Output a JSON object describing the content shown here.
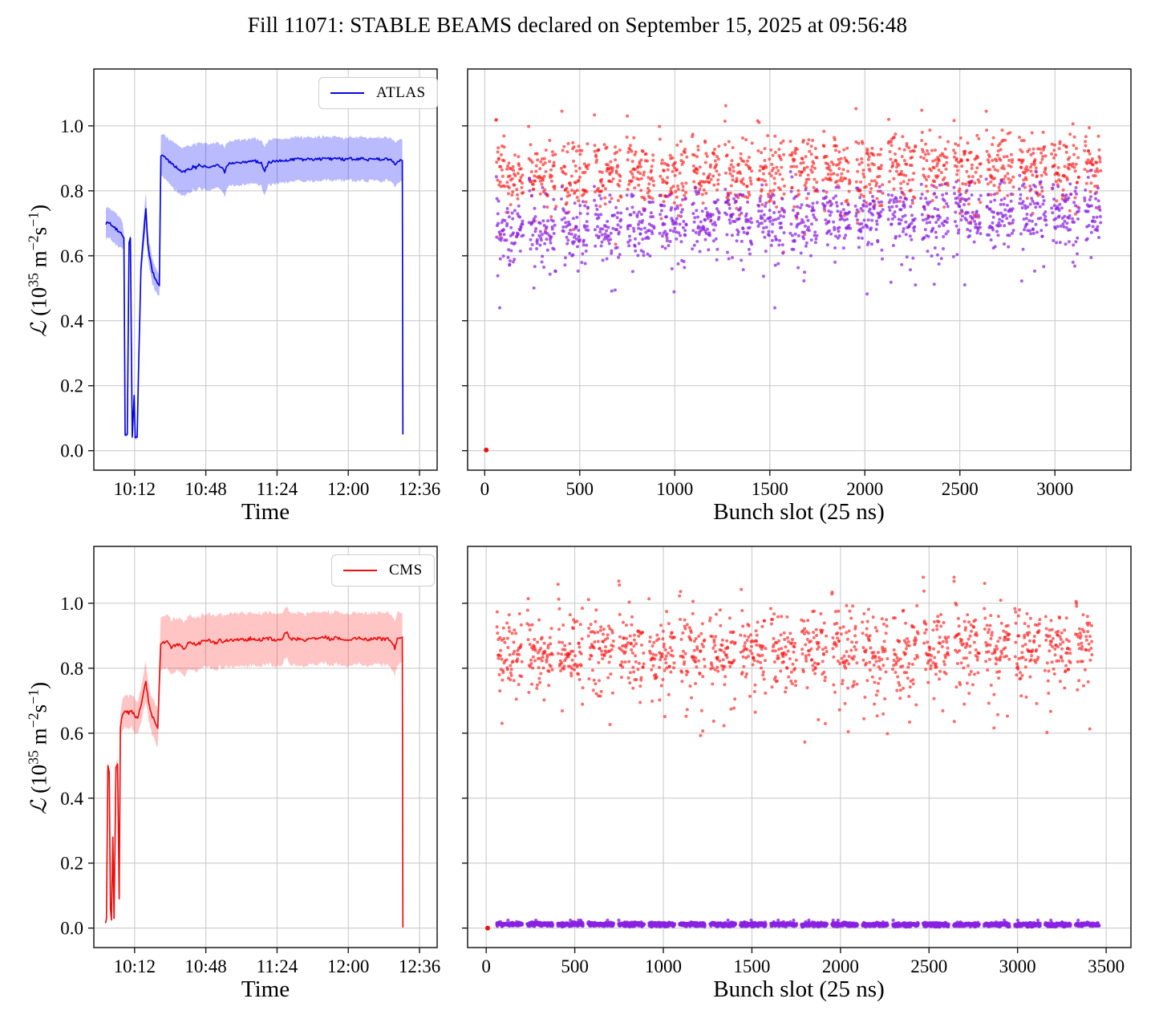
{
  "figure": {
    "title": "Fill 11071: STABLE BEAMS declared on September 15, 2025 at 09:56:48",
    "background": "#ffffff",
    "grid_color": "#c6c6c6",
    "spine_color": "#1a1a1a"
  },
  "ylabel": {
    "cal": "ℒ",
    "pre": "(10",
    "e1": "35",
    "mid": "m",
    "e2": "−2",
    "s": "s",
    "e3": "−1",
    "post": ")"
  },
  "labels": {
    "time": "Time",
    "bunch": "Bunch slot (25 ns)"
  },
  "legends": {
    "atlas": "ATLAS",
    "cms": "CMS"
  },
  "chart_data": [
    {
      "id": "atlas_time",
      "type": "line_band",
      "legend": "ATLAS",
      "line_color": "#0707dd",
      "band_color": "#0000ff",
      "band_opacity": 0.27,
      "xlabel": "Time",
      "ylabel": "L (10^35 m^-2 s^-1)",
      "x_domain_minutes_after_0900": [
        51.4,
        224.9
      ],
      "x_tick_values": [
        72,
        108,
        144,
        180,
        216
      ],
      "x_tick_labels": [
        "10:12",
        "10:48",
        "11:24",
        "12:00",
        "12:36"
      ],
      "y_domain": [
        -0.06,
        1.175
      ],
      "y_tick_values": [
        0.0,
        0.2,
        0.4,
        0.6,
        0.8,
        1.0
      ],
      "y_tick_labels": [
        "0.0",
        "0.2",
        "0.4",
        "0.6",
        "0.8",
        "1.0"
      ],
      "noise_amp": 0.004,
      "seed": 11071,
      "keypoints_t_mean_halfband": [
        [
          57.5,
          0.7,
          0.045
        ],
        [
          59,
          0.703,
          0.044
        ],
        [
          60.5,
          0.69,
          0.045
        ],
        [
          62,
          0.685,
          0.045
        ],
        [
          63.5,
          0.678,
          0.044
        ],
        [
          65,
          0.672,
          0.044
        ],
        [
          66,
          0.66,
          0.04
        ],
        [
          66.6,
          0.655,
          0.012
        ],
        [
          67.2,
          0.048,
          0.006
        ],
        [
          68.3,
          0.05,
          0.006
        ],
        [
          69.2,
          0.64,
          0.012
        ],
        [
          69.9,
          0.655,
          0.012
        ],
        [
          70.8,
          0.042,
          0.006
        ],
        [
          71.8,
          0.17,
          0.008
        ],
        [
          72.3,
          0.04,
          0.006
        ],
        [
          73.3,
          0.042,
          0.006
        ],
        [
          74.2,
          0.3,
          0.015
        ],
        [
          75.2,
          0.56,
          0.035
        ],
        [
          76.2,
          0.64,
          0.042
        ],
        [
          77.7,
          0.745,
          0.05
        ],
        [
          78.6,
          0.64,
          0.042
        ],
        [
          79.5,
          0.6,
          0.04
        ],
        [
          81,
          0.553,
          0.036
        ],
        [
          82.5,
          0.525,
          0.034
        ],
        [
          84.5,
          0.508,
          0.032
        ],
        [
          85.3,
          0.91,
          0.062
        ],
        [
          86.5,
          0.905,
          0.063
        ],
        [
          88,
          0.898,
          0.064
        ],
        [
          90,
          0.888,
          0.066
        ],
        [
          92,
          0.878,
          0.068
        ],
        [
          94,
          0.868,
          0.07
        ],
        [
          95.5,
          0.86,
          0.071
        ],
        [
          97,
          0.858,
          0.071
        ],
        [
          98.5,
          0.868,
          0.069
        ],
        [
          100,
          0.862,
          0.07
        ],
        [
          101.5,
          0.876,
          0.068
        ],
        [
          103,
          0.87,
          0.069
        ],
        [
          104.5,
          0.88,
          0.067
        ],
        [
          106,
          0.874,
          0.068
        ],
        [
          108,
          0.877,
          0.068
        ],
        [
          110,
          0.872,
          0.069
        ],
        [
          112,
          0.876,
          0.068
        ],
        [
          114,
          0.884,
          0.067
        ],
        [
          116,
          0.872,
          0.069
        ],
        [
          117.5,
          0.858,
          0.071
        ],
        [
          119,
          0.88,
          0.067
        ],
        [
          121,
          0.886,
          0.066
        ],
        [
          124,
          0.884,
          0.067
        ],
        [
          127,
          0.888,
          0.066
        ],
        [
          130,
          0.89,
          0.066
        ],
        [
          133,
          0.891,
          0.066
        ],
        [
          136,
          0.886,
          0.067
        ],
        [
          137.8,
          0.862,
          0.07
        ],
        [
          139.5,
          0.886,
          0.066
        ],
        [
          142,
          0.89,
          0.066
        ],
        [
          145,
          0.892,
          0.065
        ],
        [
          148,
          0.893,
          0.065
        ],
        [
          151,
          0.896,
          0.064
        ],
        [
          154,
          0.898,
          0.064
        ],
        [
          157,
          0.896,
          0.064
        ],
        [
          160,
          0.899,
          0.063
        ],
        [
          163,
          0.896,
          0.064
        ],
        [
          166,
          0.898,
          0.064
        ],
        [
          169,
          0.9,
          0.063
        ],
        [
          172,
          0.897,
          0.064
        ],
        [
          175,
          0.899,
          0.063
        ],
        [
          178,
          0.897,
          0.064
        ],
        [
          181,
          0.899,
          0.063
        ],
        [
          184,
          0.897,
          0.064
        ],
        [
          187,
          0.899,
          0.063
        ],
        [
          190,
          0.896,
          0.064
        ],
        [
          193,
          0.899,
          0.063
        ],
        [
          196,
          0.897,
          0.064
        ],
        [
          199,
          0.899,
          0.063
        ],
        [
          202,
          0.896,
          0.064
        ],
        [
          203.8,
          0.88,
          0.067
        ],
        [
          205,
          0.89,
          0.065
        ],
        [
          206.3,
          0.896,
          0.064
        ],
        [
          207.3,
          0.893,
          0.065
        ],
        [
          207.6,
          0.05,
          0.008
        ]
      ]
    },
    {
      "id": "bunch_top",
      "type": "scatter",
      "xlabel": "Bunch slot (25 ns)",
      "x_domain": [
        -90,
        3400
      ],
      "x_tick_values": [
        0,
        500,
        1000,
        1500,
        2000,
        2500,
        3000
      ],
      "x_tick_labels": [
        "0",
        "500",
        "1000",
        "1500",
        "2000",
        "2500",
        "3000"
      ],
      "y_domain": [
        -0.06,
        1.175
      ],
      "y_tick_values": [
        0.0,
        0.2,
        0.4,
        0.6,
        0.8,
        1.0
      ],
      "y_tick_labels": [],
      "series": [
        {
          "name": "per-bunch luminosity high",
          "color": "#ff0e0e",
          "opacity": 0.6,
          "r": 2.0,
          "seed": 314,
          "x0": 60,
          "x1": 3240,
          "block": 172,
          "fill": 144,
          "sub": 54,
          "subfill": 48,
          "step": 2,
          "base0": 0.845,
          "base1": 0.878,
          "sigma": 0.05,
          "streak_len": 9,
          "streak_amp": 0.17,
          "tail_frac": 0.07,
          "tail_amp": 0.15,
          "clip": [
            0.6,
            1.115
          ]
        },
        {
          "name": "per-bunch luminosity low",
          "color": "#8a22e2",
          "opacity": 0.72,
          "r": 2.0,
          "seed": 2718,
          "x0": 60,
          "x1": 3240,
          "block": 172,
          "fill": 144,
          "sub": 54,
          "subfill": 48,
          "step": 2,
          "base0": 0.675,
          "base1": 0.745,
          "sigma": 0.046,
          "streak_len": 9,
          "streak_amp": 0.11,
          "tail_frac": 0.13,
          "tail_amp": 0.18,
          "clip": [
            0.44,
            0.93
          ]
        }
      ],
      "markers": [
        {
          "x": 8,
          "y": 0.002,
          "color": "#ee0f0f",
          "r": 3
        }
      ]
    },
    {
      "id": "cms_time",
      "type": "line_band",
      "legend": "CMS",
      "line_color": "#ee0f0f",
      "band_color": "#ff2a2a",
      "band_opacity": 0.27,
      "xlabel": "Time",
      "ylabel": "L (10^35 m^-2 s^-1)",
      "x_domain_minutes_after_0900": [
        51.4,
        224.9
      ],
      "x_tick_values": [
        72,
        108,
        144,
        180,
        216
      ],
      "x_tick_labels": [
        "10:12",
        "10:48",
        "11:24",
        "12:00",
        "12:36"
      ],
      "y_domain": [
        -0.06,
        1.175
      ],
      "y_tick_values": [
        0.0,
        0.2,
        0.4,
        0.6,
        0.8,
        1.0
      ],
      "y_tick_labels": [
        "0.0",
        "0.2",
        "0.4",
        "0.6",
        "0.8",
        "1.0"
      ],
      "noise_amp": 0.005,
      "seed": 956,
      "keypoints_t_mean_halfband": [
        [
          57.3,
          0.015,
          0.004
        ],
        [
          57.8,
          0.03,
          0.006
        ],
        [
          58.5,
          0.5,
          0.015
        ],
        [
          59.2,
          0.48,
          0.015
        ],
        [
          59.8,
          0.06,
          0.006
        ],
        [
          60.3,
          0.025,
          0.005
        ],
        [
          61.0,
          0.28,
          0.01
        ],
        [
          61.6,
          0.03,
          0.005
        ],
        [
          62.6,
          0.495,
          0.015
        ],
        [
          63.4,
          0.505,
          0.015
        ],
        [
          64.2,
          0.09,
          0.008
        ],
        [
          64.8,
          0.62,
          0.04
        ],
        [
          66,
          0.66,
          0.044
        ],
        [
          67.5,
          0.668,
          0.045
        ],
        [
          69,
          0.662,
          0.045
        ],
        [
          70.5,
          0.668,
          0.045
        ],
        [
          72,
          0.655,
          0.046
        ],
        [
          73.5,
          0.648,
          0.046
        ],
        [
          75,
          0.68,
          0.048
        ],
        [
          76.5,
          0.73,
          0.052
        ],
        [
          77.7,
          0.758,
          0.055
        ],
        [
          79,
          0.7,
          0.052
        ],
        [
          80.5,
          0.66,
          0.052
        ],
        [
          82,
          0.638,
          0.054
        ],
        [
          83.7,
          0.618,
          0.056
        ],
        [
          85.2,
          0.872,
          0.078
        ],
        [
          86.5,
          0.878,
          0.078
        ],
        [
          88,
          0.885,
          0.077
        ],
        [
          89.5,
          0.872,
          0.079
        ],
        [
          91,
          0.862,
          0.08
        ],
        [
          93,
          0.875,
          0.078
        ],
        [
          95,
          0.872,
          0.079
        ],
        [
          97,
          0.86,
          0.08
        ],
        [
          99,
          0.875,
          0.078
        ],
        [
          101,
          0.88,
          0.078
        ],
        [
          103,
          0.872,
          0.079
        ],
        [
          105,
          0.878,
          0.078
        ],
        [
          107,
          0.885,
          0.077
        ],
        [
          109,
          0.888,
          0.077
        ],
        [
          111,
          0.882,
          0.078
        ],
        [
          113,
          0.878,
          0.078
        ],
        [
          115,
          0.885,
          0.077
        ],
        [
          117,
          0.882,
          0.078
        ],
        [
          119,
          0.888,
          0.077
        ],
        [
          122,
          0.884,
          0.078
        ],
        [
          125,
          0.888,
          0.077
        ],
        [
          128,
          0.886,
          0.077
        ],
        [
          131,
          0.892,
          0.076
        ],
        [
          134,
          0.886,
          0.077
        ],
        [
          137,
          0.89,
          0.077
        ],
        [
          140,
          0.892,
          0.076
        ],
        [
          143,
          0.888,
          0.077
        ],
        [
          146,
          0.886,
          0.077
        ],
        [
          149,
          0.912,
          0.074
        ],
        [
          150.5,
          0.89,
          0.077
        ],
        [
          153,
          0.892,
          0.076
        ],
        [
          156,
          0.888,
          0.077
        ],
        [
          159,
          0.886,
          0.077
        ],
        [
          162,
          0.89,
          0.076
        ],
        [
          165,
          0.893,
          0.076
        ],
        [
          168,
          0.896,
          0.075
        ],
        [
          171,
          0.89,
          0.077
        ],
        [
          174,
          0.893,
          0.076
        ],
        [
          177,
          0.888,
          0.077
        ],
        [
          180,
          0.886,
          0.077
        ],
        [
          183,
          0.89,
          0.076
        ],
        [
          186,
          0.892,
          0.076
        ],
        [
          189,
          0.888,
          0.077
        ],
        [
          192,
          0.89,
          0.076
        ],
        [
          195,
          0.893,
          0.076
        ],
        [
          198,
          0.888,
          0.077
        ],
        [
          201,
          0.89,
          0.076
        ],
        [
          203.5,
          0.862,
          0.08
        ],
        [
          204.8,
          0.888,
          0.077
        ],
        [
          206.3,
          0.893,
          0.076
        ],
        [
          207.3,
          0.896,
          0.076
        ],
        [
          207.6,
          0.002,
          0.002
        ]
      ]
    },
    {
      "id": "bunch_bottom",
      "type": "scatter",
      "xlabel": "Bunch slot (25 ns)",
      "x_domain": [
        -105,
        3640
      ],
      "x_tick_values": [
        0,
        500,
        1000,
        1500,
        2000,
        2500,
        3000,
        3500
      ],
      "x_tick_labels": [
        "0",
        "500",
        "1000",
        "1500",
        "2000",
        "2500",
        "3000",
        "3500"
      ],
      "y_domain": [
        -0.06,
        1.175
      ],
      "y_tick_values": [
        0.0,
        0.2,
        0.4,
        0.6,
        0.8,
        1.0
      ],
      "y_tick_labels": [],
      "series": [
        {
          "name": "per-bunch luminosity",
          "color": "#ff0e0e",
          "opacity": 0.6,
          "r": 2.0,
          "seed": 1618,
          "x0": 60,
          "x1": 3420,
          "block": 172,
          "fill": 144,
          "sub": 54,
          "subfill": 48,
          "step": 2,
          "base0": 0.845,
          "base1": 0.875,
          "sigma": 0.055,
          "streak_len": 9,
          "streak_amp": 0.17,
          "tail_frac": 0.12,
          "tail_amp": 0.22,
          "clip": [
            0.55,
            1.08
          ]
        },
        {
          "name": "per-bunch background",
          "color": "#8a22e2",
          "opacity": 0.8,
          "r": 2.1,
          "seed": 4242,
          "x0": 60,
          "x1": 3460,
          "block": 172,
          "fill": 144,
          "sub": 54,
          "subfill": 50,
          "step": 1,
          "base0": 0.012,
          "base1": 0.01,
          "sigma": 0.0032,
          "streak_len": 0,
          "streak_amp": 0,
          "tail_frac": 0,
          "tail_amp": 0,
          "clip": [
            0.004,
            0.024
          ]
        }
      ],
      "markers": [
        {
          "x": 8,
          "y": 0.0,
          "color": "#ee0f0f",
          "r": 3
        }
      ]
    }
  ]
}
